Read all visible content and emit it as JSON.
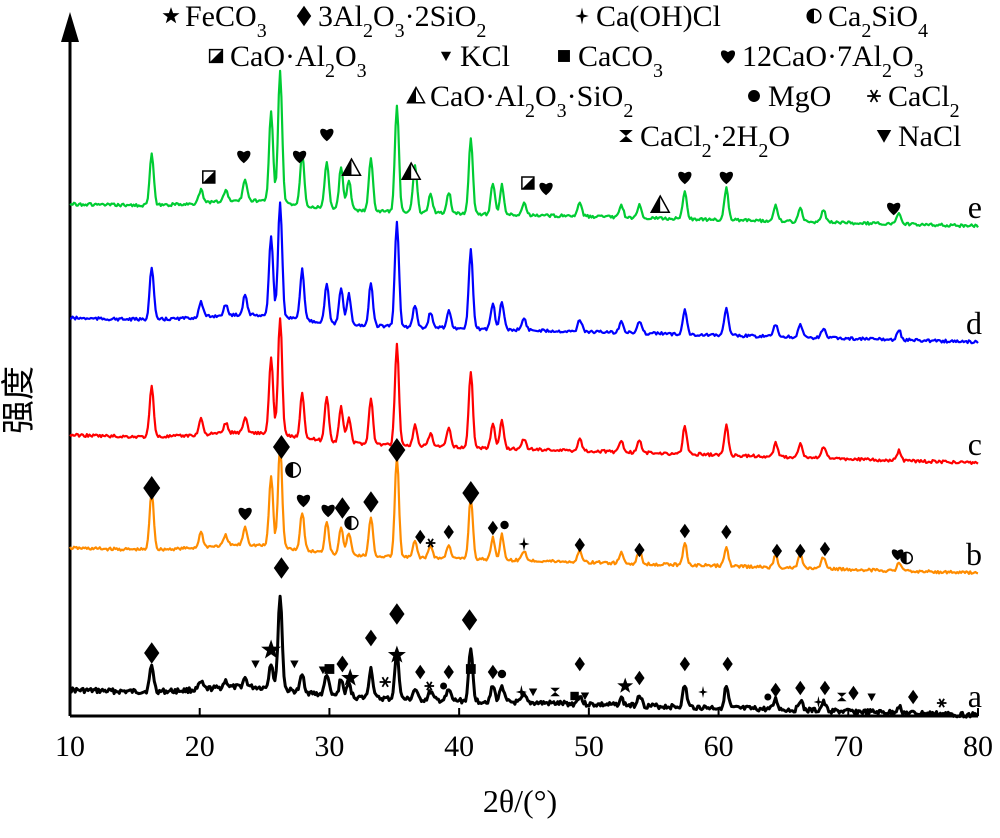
{
  "chart_data": {
    "type": "line",
    "xlabel": "2θ/(°)",
    "ylabel": "强度",
    "xlim": [
      10,
      80
    ],
    "xticks": [
      10,
      20,
      30,
      40,
      50,
      60,
      70,
      80
    ],
    "grid": false,
    "legend_position": "top",
    "legend": [
      {
        "name": "FeCO3",
        "marker": "star"
      },
      {
        "name": "3Al2O3·2SiO2",
        "marker": "diamond"
      },
      {
        "name": "Ca(OH)Cl",
        "marker": "cross4"
      },
      {
        "name": "Ca2SiO4",
        "marker": "half-circle"
      },
      {
        "name": "CaO·Al2O3",
        "marker": "half-square"
      },
      {
        "name": "KCl",
        "marker": "small-triangle-down"
      },
      {
        "name": "CaCO3",
        "marker": "square"
      },
      {
        "name": "12CaO·7Al2O3",
        "marker": "heart"
      },
      {
        "name": "CaO·Al2O3·SiO2",
        "marker": "half-triangle"
      },
      {
        "name": "MgO",
        "marker": "circle"
      },
      {
        "name": "CaCl2",
        "marker": "asterisk"
      },
      {
        "name": "CaCl2·2H2O",
        "marker": "bowtie"
      },
      {
        "name": "NaCl",
        "marker": "triangle-down"
      }
    ],
    "peak_positions": [
      16.3,
      20.1,
      22.0,
      23.5,
      25.5,
      26.2,
      27.9,
      29.8,
      30.9,
      31.5,
      33.2,
      35.2,
      36.6,
      37.8,
      39.2,
      40.9,
      42.6,
      43.3,
      45.0,
      49.3,
      52.5,
      53.9,
      57.4,
      60.6,
      64.4,
      66.3,
      68.1,
      73.9
    ],
    "series": [
      {
        "name": "a",
        "color": "#000000",
        "peak_heights": [
          30,
          8,
          8,
          10,
          30,
          110,
          20,
          25,
          20,
          15,
          35,
          55,
          12,
          10,
          12,
          60,
          18,
          20,
          8,
          10,
          8,
          14,
          25,
          25,
          12,
          12,
          10,
          8
        ]
      },
      {
        "name": "b",
        "color": "#ff8c00",
        "peak_heights": [
          58,
          15,
          10,
          18,
          70,
          102,
          38,
          32,
          28,
          22,
          38,
          100,
          16,
          12,
          14,
          62,
          22,
          25,
          10,
          12,
          10,
          14,
          22,
          20,
          12,
          14,
          12,
          8
        ]
      },
      {
        "name": "c",
        "color": "#ff0000",
        "peak_heights": [
          50,
          16,
          10,
          15,
          75,
          118,
          45,
          45,
          35,
          25,
          45,
          100,
          20,
          12,
          18,
          75,
          25,
          28,
          10,
          12,
          12,
          12,
          28,
          30,
          14,
          14,
          12,
          10
        ]
      },
      {
        "name": "d",
        "color": "#0000ff",
        "peak_heights": [
          52,
          15,
          10,
          20,
          80,
          115,
          50,
          40,
          35,
          30,
          42,
          105,
          22,
          15,
          18,
          78,
          25,
          28,
          12,
          12,
          12,
          12,
          25,
          28,
          12,
          12,
          10,
          10
        ]
      },
      {
        "name": "e",
        "color": "#00cc33",
        "peak_heights": [
          48,
          12,
          10,
          20,
          85,
          125,
          50,
          45,
          40,
          28,
          50,
          100,
          45,
          18,
          20,
          72,
          30,
          28,
          12,
          12,
          12,
          12,
          26,
          30,
          15,
          14,
          12,
          10
        ]
      }
    ]
  }
}
